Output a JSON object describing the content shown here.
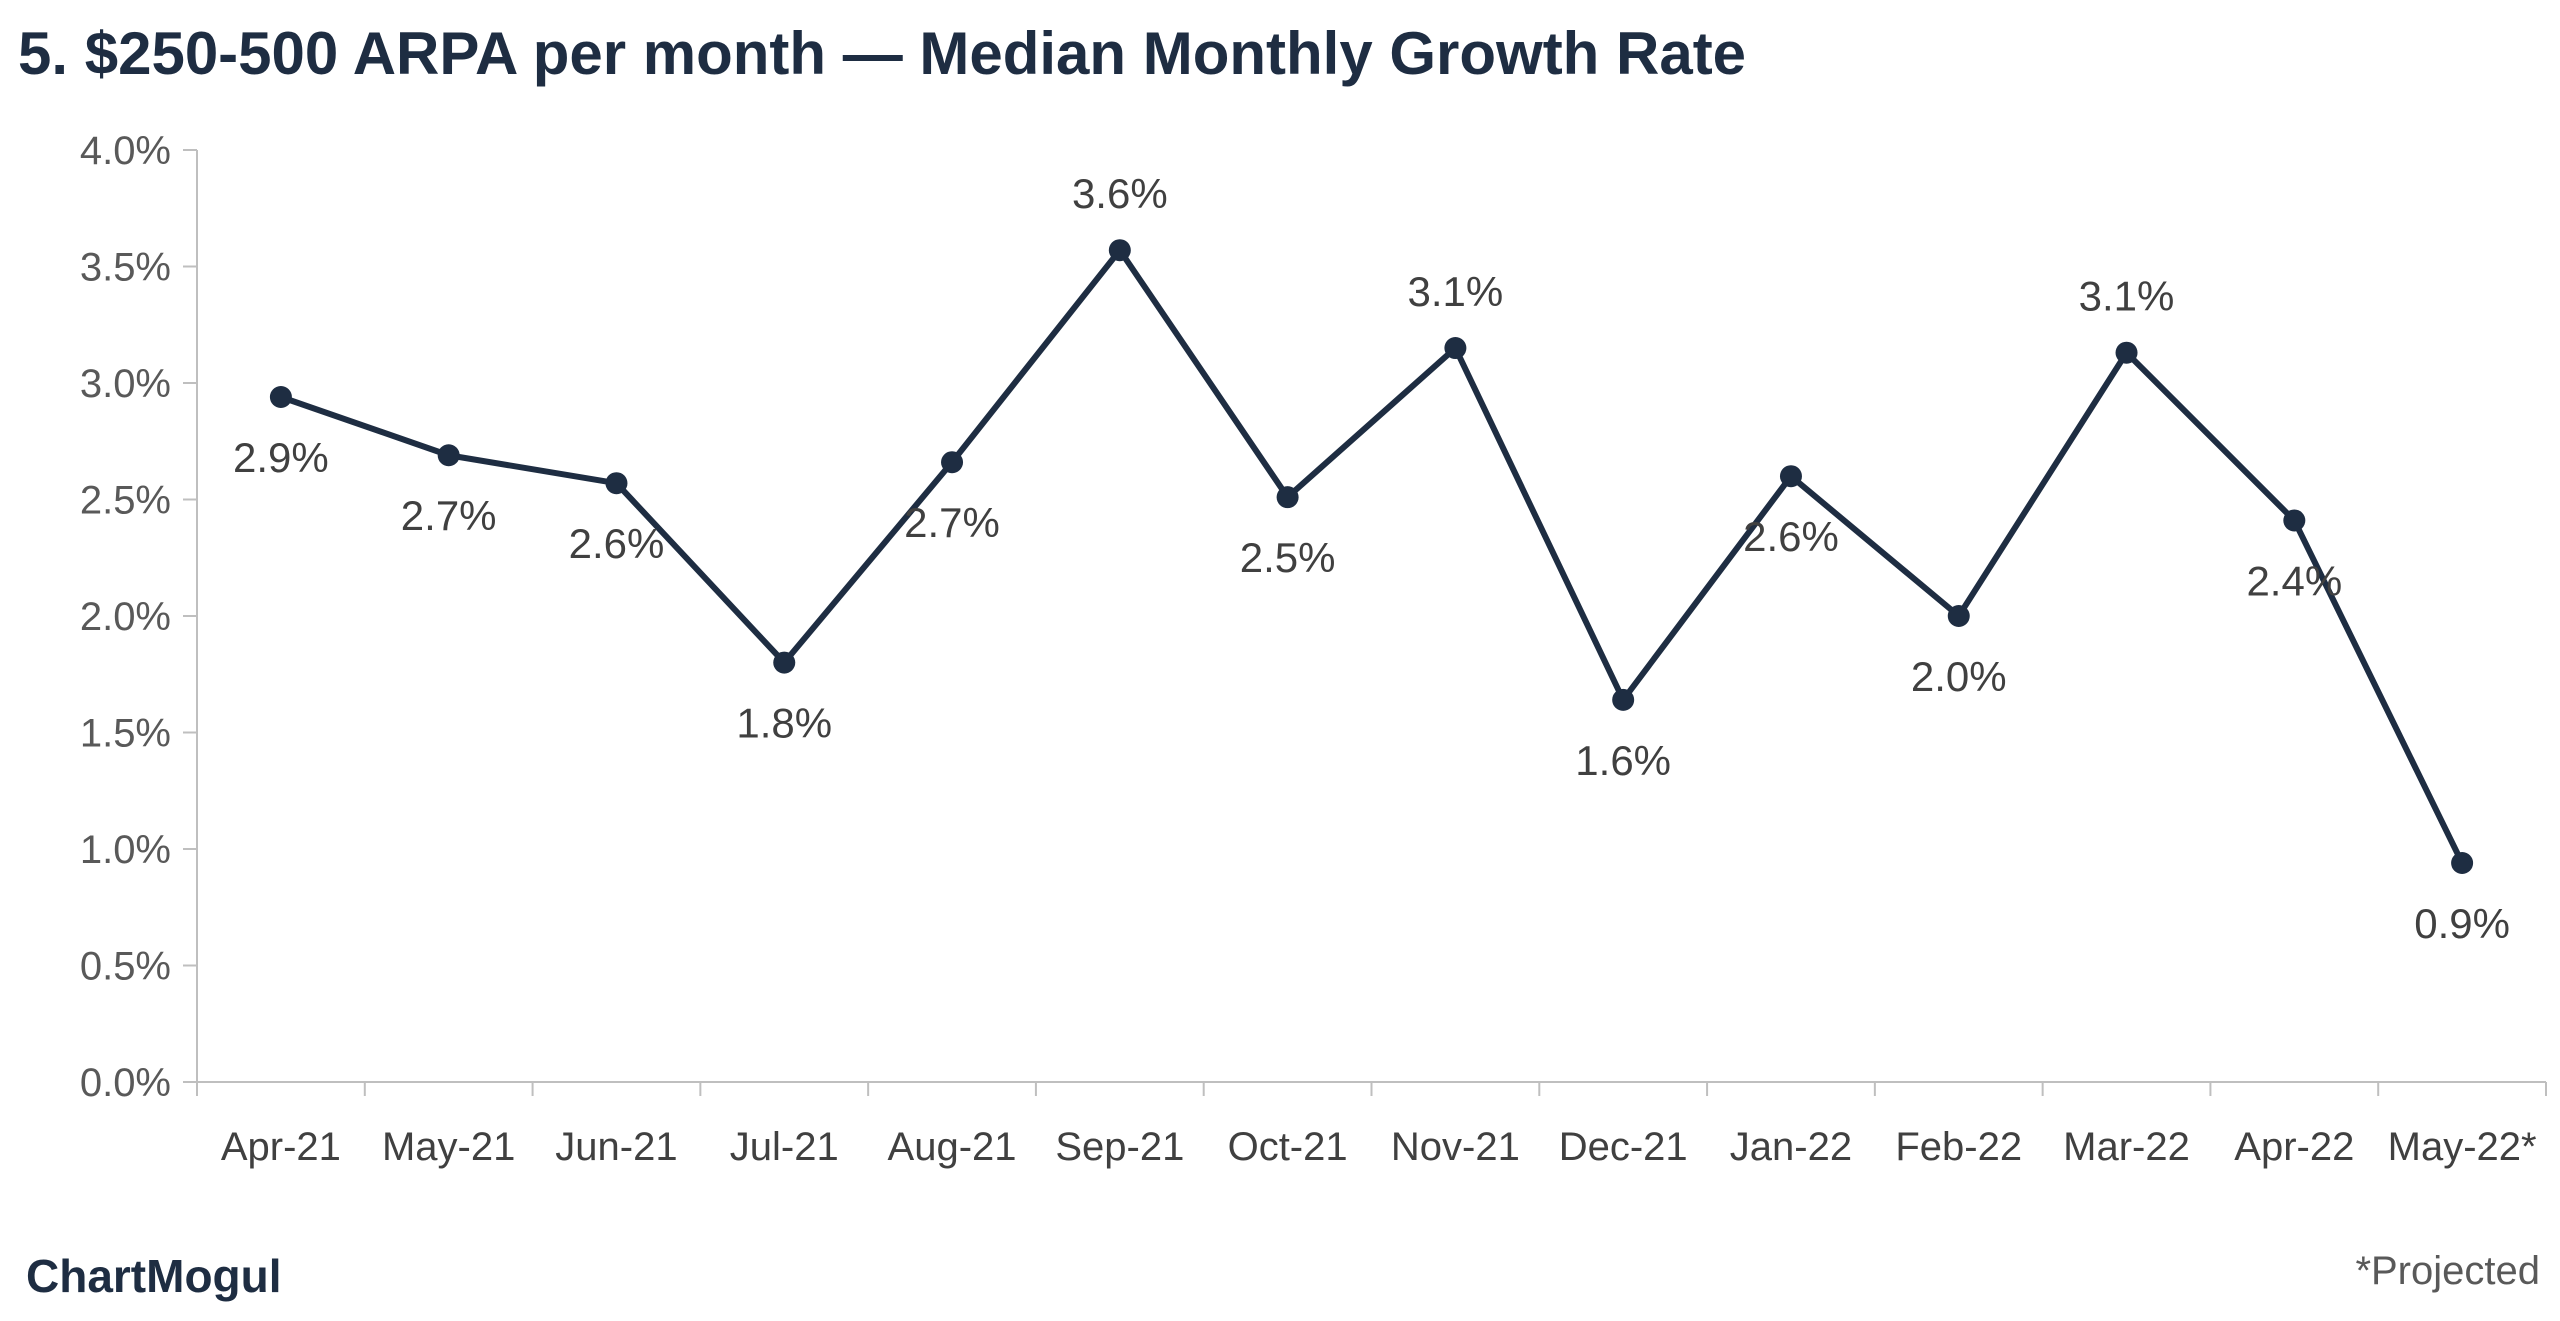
{
  "chart_data": {
    "type": "line",
    "title": "5. $250-500 ARPA per month — Median Monthly Growth Rate",
    "categories": [
      "Apr-21",
      "May-21",
      "Jun-21",
      "Jul-21",
      "Aug-21",
      "Sep-21",
      "Oct-21",
      "Nov-21",
      "Dec-21",
      "Jan-22",
      "Feb-22",
      "Mar-22",
      "Apr-22",
      "May-22*"
    ],
    "series": [
      {
        "values": [
          2.94,
          2.69,
          2.57,
          1.8,
          2.66,
          3.57,
          2.51,
          3.15,
          1.64,
          2.6,
          2.0,
          3.13,
          2.41,
          0.94
        ],
        "labels": [
          "2.9%",
          "2.7%",
          "2.6%",
          "1.8%",
          "2.7%",
          "3.6%",
          "2.5%",
          "3.1%",
          "1.6%",
          "2.6%",
          "2.0%",
          "3.1%",
          "2.4%",
          "0.9%"
        ],
        "color": "#1e2d42"
      }
    ],
    "y_ticks": [
      "0.0%",
      "0.5%",
      "1.0%",
      "1.5%",
      "2.0%",
      "2.5%",
      "3.0%",
      "3.5%",
      "4.0%"
    ],
    "ylim": [
      0,
      4.0
    ],
    "xlabel": "",
    "ylabel": "",
    "grid": false,
    "legend": "none"
  },
  "brand": {
    "name": "ChartMogul"
  },
  "footnote": "*Projected",
  "colors": {
    "line": "#1e2d42",
    "axis": "#bfbfbf",
    "title": "#1e2d42"
  }
}
